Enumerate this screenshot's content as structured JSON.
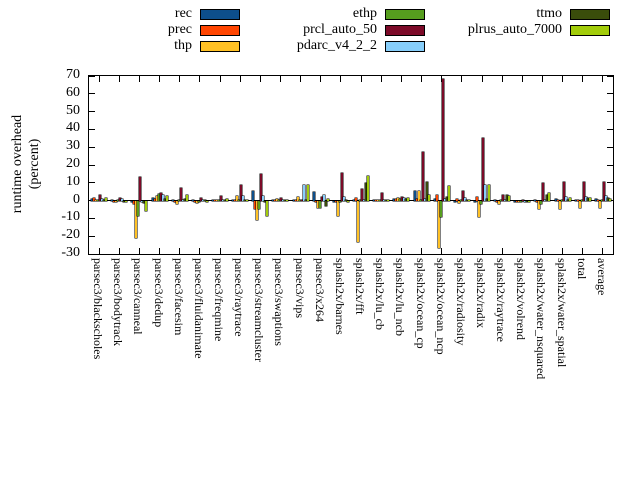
{
  "chart_data": {
    "type": "bar",
    "title": "",
    "ylabel_lines": [
      "runtime overhead",
      "(percent)"
    ],
    "ylim": [
      -30,
      70
    ],
    "yticks": [
      70,
      60,
      50,
      40,
      30,
      20,
      10,
      0,
      -10,
      -20,
      -30
    ],
    "grid": false,
    "legend_position": "top-outside-3-columns",
    "categories": [
      "parsec3/blackscholes",
      "parsec3/bodytrack",
      "parsec3/canneal",
      "parsec3/dedup",
      "parsec3/facesim",
      "parsec3/fluidanimate",
      "parsec3/freqmine",
      "parsec3/raytrace",
      "parsec3/streamcluster",
      "parsec3/swaptions",
      "parsec3/vips",
      "parsec3/x264",
      "splash2x/barnes",
      "splash2x/fft",
      "splash2x/lu_cb",
      "splash2x/lu_ncb",
      "splash2x/ocean_cp",
      "splash2x/ocean_ncp",
      "splash2x/radiosity",
      "splash2x/radix",
      "splash2x/raytrace",
      "splash2x/volrend",
      "splash2x/water_nsquared",
      "splash2x/water_spatial",
      "total",
      "average"
    ],
    "series": [
      {
        "name": "rec",
        "color": "#0D4F8B",
        "values": [
          1,
          0.5,
          -0.5,
          1.5,
          0.5,
          0.3,
          0.3,
          0.3,
          5.5,
          0.3,
          0.5,
          5,
          -1,
          0.3,
          0.3,
          1,
          5.5,
          1,
          -0.3,
          -0.5,
          0.3,
          -0.3,
          0.5,
          1,
          0.5,
          1
        ]
      },
      {
        "name": "prec",
        "color": "#FF4500",
        "values": [
          1.5,
          -1,
          -2,
          1,
          -1,
          -0.5,
          0.3,
          0.5,
          -5,
          0.3,
          0.3,
          -0.5,
          -0.5,
          1.5,
          0.3,
          1,
          1,
          3,
          1,
          2,
          -0.5,
          -0.3,
          -1,
          0.5,
          0.3,
          0.5
        ]
      },
      {
        "name": "thp",
        "color": "#FFC125",
        "values": [
          0.5,
          -1,
          -21,
          2.5,
          -2,
          -1.5,
          0.5,
          2.5,
          -11,
          1,
          2,
          -4,
          -8.5,
          -23,
          0.5,
          1.5,
          5.5,
          -26.5,
          -1.5,
          -9,
          -2,
          -0.5,
          -5,
          -5,
          -4,
          -4
        ]
      },
      {
        "name": "ethp",
        "color": "#569E1E",
        "values": [
          0.5,
          0.5,
          -8.5,
          3.5,
          0.5,
          -0.5,
          0.3,
          0.3,
          -5,
          0.3,
          0.3,
          -4,
          -0.5,
          0.5,
          0.3,
          1,
          0.5,
          -9,
          0.3,
          -2,
          0.3,
          -0.3,
          -2,
          0.5,
          0.5,
          0.5
        ]
      },
      {
        "name": "prcl_auto_50",
        "color": "#7C0A28",
        "values": [
          3,
          1.5,
          13.5,
          4,
          7,
          1.5,
          2.5,
          8.5,
          15,
          1.5,
          0.5,
          2,
          15.5,
          6.5,
          4,
          2,
          27.5,
          68.5,
          5.5,
          35,
          3,
          0.3,
          10,
          10.5,
          10.5,
          10.5
        ]
      },
      {
        "name": "pdarc_v4_2_2",
        "color": "#87CEFA",
        "values": [
          1,
          1,
          -1,
          3,
          0.5,
          0.3,
          0.3,
          2.5,
          2.5,
          0.5,
          8.5,
          3,
          2,
          0.5,
          0.3,
          1.5,
          1,
          1,
          1.5,
          8.5,
          0.5,
          -0.3,
          0.5,
          2,
          2,
          2.5
        ]
      },
      {
        "name": "ttmo",
        "color": "#3A4D0B",
        "values": [
          0.5,
          -1,
          -1.5,
          1,
          1,
          0.5,
          0.3,
          0.5,
          -0.5,
          0.3,
          0.5,
          -3,
          0.5,
          10,
          0.3,
          1,
          10.5,
          2,
          0.5,
          1,
          3,
          -0.3,
          3,
          0.5,
          1.5,
          1.5
        ]
      },
      {
        "name": "plrus_auto_7000",
        "color": "#A2CC0A",
        "values": [
          1.5,
          -0.5,
          -6,
          2.5,
          3,
          -0.5,
          0.8,
          0.3,
          -8.5,
          0.5,
          8.5,
          1,
          -0.5,
          14,
          0.5,
          1.5,
          3,
          8,
          0.5,
          8.5,
          2.5,
          -0.3,
          4,
          1.5,
          1.5,
          1
        ]
      }
    ]
  },
  "legend": {
    "column_series": [
      [
        0,
        1,
        2
      ],
      [
        3,
        4,
        5
      ],
      [
        6,
        7
      ]
    ]
  },
  "axis": {
    "ylabel_line1": "runtime overhead",
    "ylabel_line2": "(percent)"
  }
}
